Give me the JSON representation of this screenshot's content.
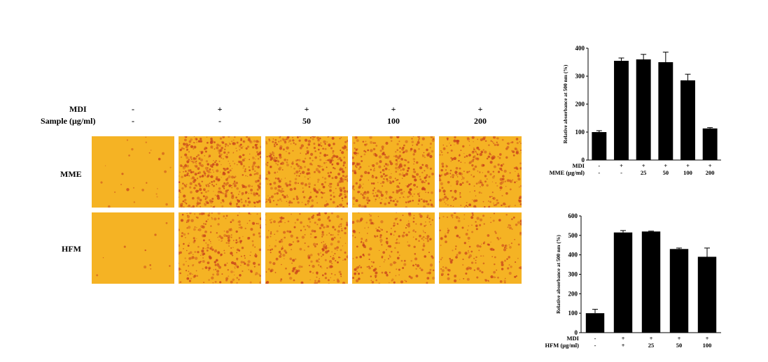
{
  "treatment_header": {
    "row_labels": [
      "MDI",
      "Sample (μg/ml)"
    ],
    "mdi": [
      "-",
      "+",
      "+",
      "+",
      "+"
    ],
    "sample": [
      "-",
      "-",
      "50",
      "100",
      "200"
    ]
  },
  "micrograph_grid": {
    "rows": [
      {
        "label": "MME",
        "stain_intensity": [
          0.05,
          0.9,
          0.75,
          0.7,
          0.6
        ]
      },
      {
        "label": "HFM",
        "stain_intensity": [
          0.02,
          0.55,
          0.5,
          0.45,
          0.35
        ]
      }
    ],
    "colors": {
      "background": "#f5b324",
      "stain": "#c8421b"
    }
  },
  "chart_data": [
    {
      "type": "bar",
      "title": "",
      "ylabel": "Relative absorbance at 500 nm (%)",
      "ylim": [
        0,
        400
      ],
      "yticks": [
        0,
        100,
        200,
        300,
        400
      ],
      "values": [
        100,
        355,
        360,
        350,
        285,
        113
      ],
      "errors": [
        5,
        10,
        18,
        36,
        22,
        3
      ],
      "rows": [
        {
          "label": "MDI",
          "values": [
            "-",
            "+",
            "+",
            "+",
            "+",
            "+"
          ]
        },
        {
          "label": "MME (μg/ml)",
          "values": [
            "-",
            "-",
            "25",
            "50",
            "100",
            "200"
          ]
        }
      ],
      "bar_color": "#000000"
    },
    {
      "type": "bar",
      "title": "",
      "ylabel": "Relative absorbance at 500 nm (%)",
      "ylim": [
        0,
        600
      ],
      "yticks": [
        0,
        100,
        200,
        300,
        400,
        500,
        600
      ],
      "values": [
        100,
        515,
        520,
        430,
        390
      ],
      "errors": [
        20,
        10,
        2,
        5,
        45
      ],
      "rows": [
        {
          "label": "MDI",
          "values": [
            "-",
            "+",
            "+",
            "+",
            "+"
          ]
        },
        {
          "label": "HFM (μg/ml)",
          "values": [
            "-",
            "+",
            "25",
            "50",
            "100"
          ]
        }
      ],
      "bar_color": "#000000"
    }
  ]
}
